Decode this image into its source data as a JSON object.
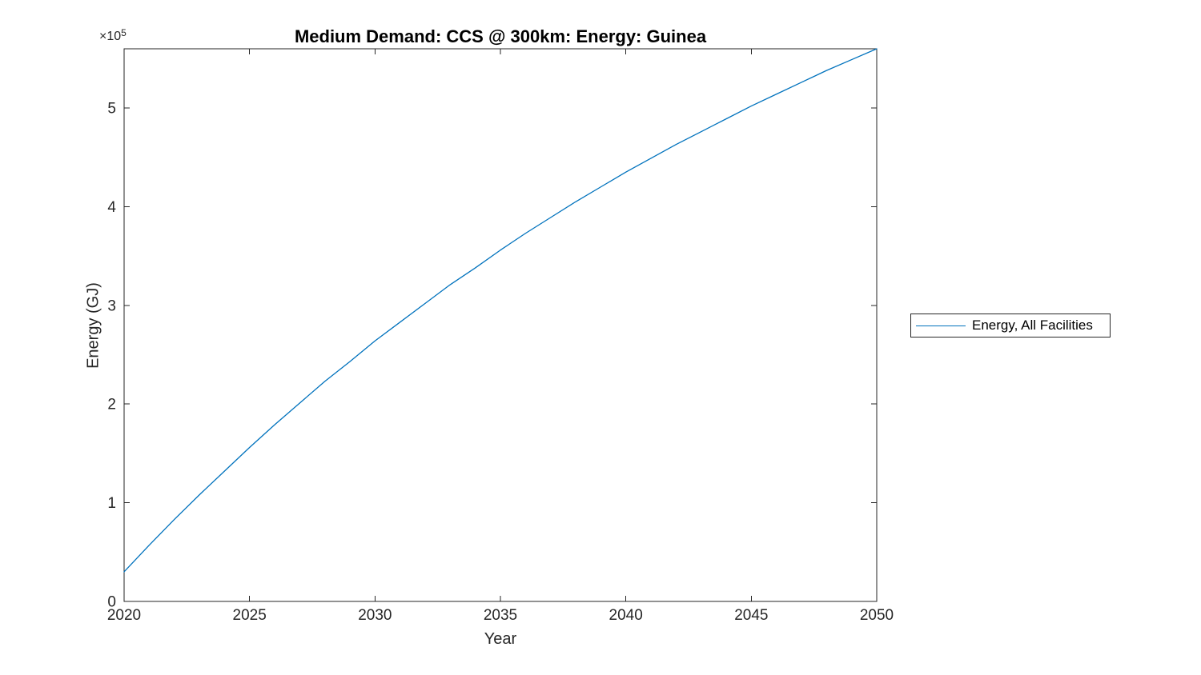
{
  "chart_data": {
    "type": "line",
    "title": "Medium Demand: CCS @ 300km: Energy: Guinea",
    "xlabel": "Year",
    "ylabel": "Energy (GJ)",
    "y_axis_exponent": {
      "base": "×10",
      "power": "5"
    },
    "xlim": [
      2020,
      2050
    ],
    "ylim": [
      0,
      560000
    ],
    "xticks": [
      2020,
      2025,
      2030,
      2035,
      2040,
      2045,
      2050
    ],
    "xtick_labels": [
      "2020",
      "2025",
      "2030",
      "2035",
      "2040",
      "2045",
      "2050"
    ],
    "yticks": [
      0,
      100000,
      200000,
      300000,
      400000,
      500000
    ],
    "ytick_labels": [
      "0",
      "1",
      "2",
      "3",
      "4",
      "5"
    ],
    "grid": false,
    "axis_color": "#262626",
    "background_color": "#ffffff",
    "legend": {
      "position": "right-outside",
      "entries": [
        {
          "label": "Energy, All Facilities",
          "color": "#0072BD"
        }
      ]
    },
    "series": [
      {
        "name": "Energy, All Facilities",
        "color": "#0072BD",
        "x": [
          2020,
          2021,
          2022,
          2023,
          2024,
          2025,
          2026,
          2027,
          2028,
          2029,
          2030,
          2031,
          2032,
          2033,
          2034,
          2035,
          2036,
          2037,
          2038,
          2039,
          2040,
          2041,
          2042,
          2043,
          2044,
          2045,
          2046,
          2047,
          2048,
          2049,
          2050
        ],
        "y": [
          30000,
          57000,
          83000,
          108000,
          132000,
          156000,
          179000,
          201000,
          223000,
          243000,
          264000,
          283000,
          302000,
          321000,
          338000,
          356000,
          373000,
          389000,
          405000,
          420000,
          435000,
          449000,
          463000,
          476000,
          489000,
          502000,
          514000,
          526000,
          538000,
          549000,
          560000
        ]
      }
    ]
  }
}
